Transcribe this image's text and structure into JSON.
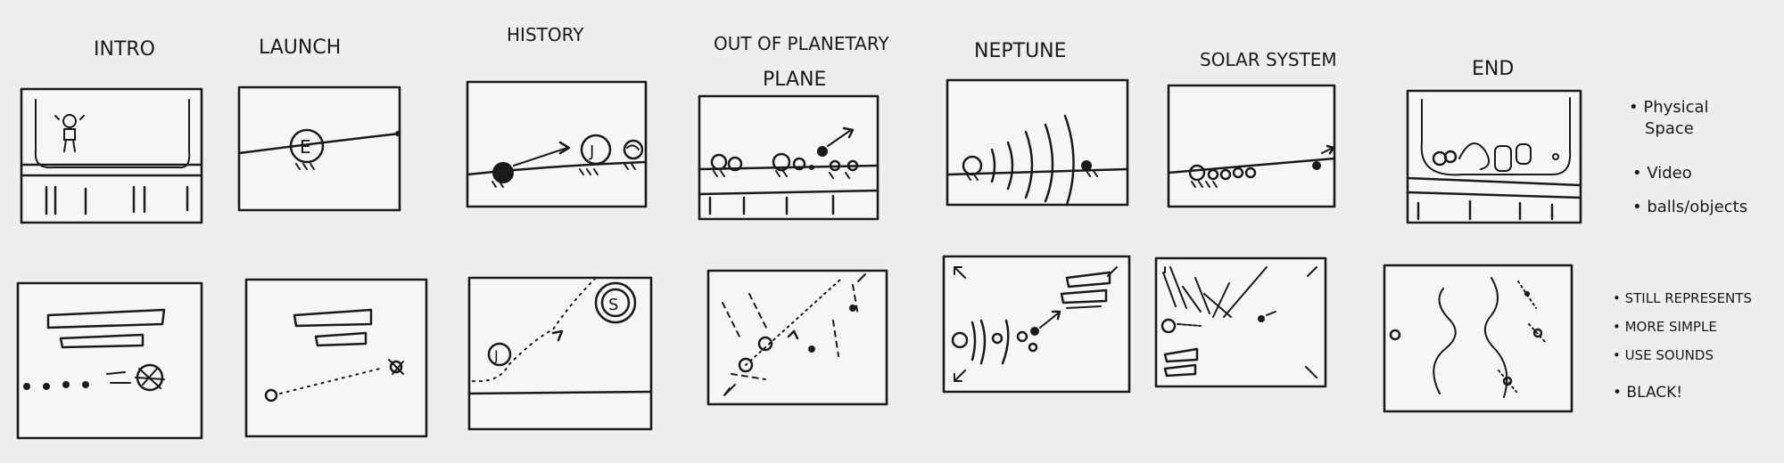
{
  "columns": [
    {
      "title": "INTRO"
    },
    {
      "title": "LAUNCH"
    },
    {
      "title": "HISTORY"
    },
    {
      "title": "OUT OF PLANETARY",
      "title2": "PLANE"
    },
    {
      "title": "NEPTUNE"
    },
    {
      "title": "SOLAR SYSTEM"
    },
    {
      "title": "END"
    }
  ],
  "labels": {
    "earth": "E",
    "jupiter": "J",
    "saturn": "S"
  },
  "notes_top": [
    "• Physical",
    "Space",
    "• Video",
    "• balls/objects"
  ],
  "notes_bottom": [
    "• STILL REPRESENTS",
    "• MORE SIMPLE",
    "• USE SOUNDS",
    "• BLACK!"
  ]
}
